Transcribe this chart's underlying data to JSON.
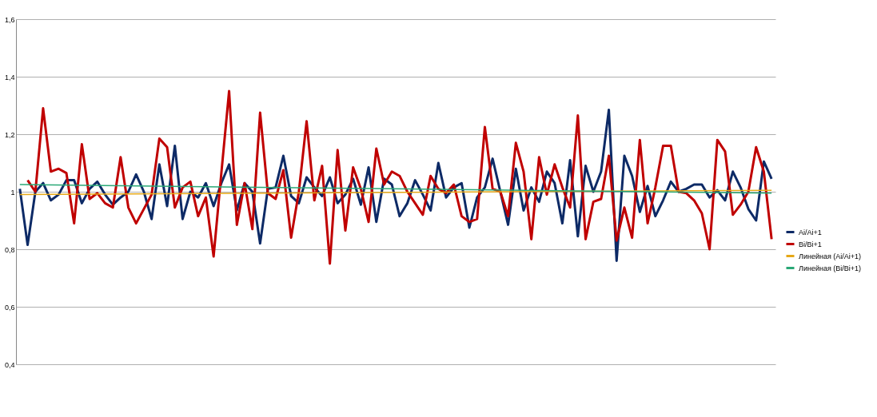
{
  "chart_data": {
    "type": "line",
    "categories": [
      null,
      null,
      null,
      null,
      null,
      null,
      null,
      null,
      null,
      null,
      null,
      null,
      null,
      null,
      null,
      null,
      null,
      null,
      null,
      null,
      null,
      null,
      null,
      null,
      null,
      null,
      null,
      null,
      null,
      null,
      null,
      null,
      null,
      null,
      null,
      null,
      null,
      null,
      null,
      null,
      null,
      null,
      null,
      null,
      null,
      null,
      null,
      null,
      null,
      null,
      null,
      null,
      null,
      null,
      null,
      null,
      null,
      null,
      null,
      null,
      null,
      null,
      null,
      null,
      null,
      null,
      null,
      null,
      null,
      null,
      null,
      null,
      null,
      null,
      null,
      null,
      null,
      null,
      null,
      null,
      null,
      null,
      null,
      null,
      null,
      null,
      null,
      null,
      null,
      null,
      null,
      null,
      null,
      null,
      null,
      null,
      null,
      null
    ],
    "series": [
      {
        "name": "Ai/Ai+1",
        "color": "#0d2a66",
        "values": [
          1.01,
          0.815,
          1.0,
          1.03,
          0.97,
          0.99,
          1.04,
          1.04,
          0.96,
          1.01,
          1.035,
          0.99,
          0.955,
          0.98,
          1.0,
          1.06,
          1.0,
          0.905,
          1.095,
          0.95,
          1.16,
          0.905,
          1.0,
          0.98,
          1.03,
          0.95,
          1.03,
          1.095,
          0.935,
          1.03,
          1.0,
          0.82,
          1.01,
          1.015,
          1.125,
          0.985,
          0.96,
          1.05,
          1.015,
          0.985,
          1.05,
          0.96,
          0.99,
          1.045,
          0.955,
          1.085,
          0.895,
          1.045,
          1.025,
          0.915,
          0.96,
          1.04,
          0.99,
          0.935,
          1.1,
          0.98,
          1.015,
          1.03,
          0.875,
          0.98,
          1.015,
          1.115,
          1.0,
          0.885,
          1.08,
          0.935,
          1.015,
          0.965,
          1.07,
          1.03,
          0.89,
          1.11,
          0.845,
          1.09,
          1.0,
          1.07,
          1.285,
          0.76,
          1.125,
          1.055,
          0.93,
          1.02,
          0.915,
          0.97,
          1.035,
          1.0,
          1.01,
          1.025,
          1.025,
          0.98,
          1.005,
          0.97,
          1.07,
          1.015,
          0.94,
          0.9,
          1.105,
          1.045
        ]
      },
      {
        "name": "Bi/Bi+1",
        "color": "#c00000",
        "values": [
          null,
          1.04,
          1.0,
          1.29,
          1.07,
          1.08,
          1.065,
          0.89,
          1.165,
          0.975,
          0.995,
          0.96,
          0.945,
          1.12,
          0.945,
          0.89,
          0.94,
          0.99,
          1.185,
          1.155,
          0.945,
          1.015,
          1.035,
          0.915,
          0.98,
          0.775,
          1.065,
          1.35,
          0.885,
          1.03,
          0.87,
          1.275,
          0.995,
          0.975,
          1.075,
          0.84,
          1.0,
          1.245,
          0.97,
          1.09,
          0.75,
          1.145,
          0.865,
          1.085,
          1.01,
          0.895,
          1.15,
          1.025,
          1.07,
          1.055,
          1.0,
          0.96,
          0.92,
          1.055,
          1.01,
          0.995,
          1.025,
          0.915,
          0.895,
          0.905,
          1.225,
          1.01,
          1.0,
          0.915,
          1.17,
          1.07,
          0.835,
          1.12,
          0.99,
          1.095,
          1.015,
          0.945,
          1.265,
          0.835,
          0.965,
          0.975,
          1.125,
          0.83,
          0.945,
          0.84,
          1.18,
          0.89,
          1.015,
          1.16,
          1.16,
          1.0,
          0.995,
          0.97,
          0.925,
          0.8,
          1.18,
          1.14,
          0.92,
          0.955,
          1.0,
          1.155,
          1.07,
          0.835
        ]
      },
      {
        "name": "Линейная (Ai/Ai+1)",
        "color": "#e6a817",
        "values": [
          0.99,
          null,
          null,
          null,
          null,
          null,
          null,
          null,
          null,
          null,
          null,
          null,
          null,
          null,
          null,
          null,
          null,
          null,
          null,
          null,
          null,
          null,
          null,
          null,
          null,
          null,
          null,
          null,
          null,
          null,
          null,
          null,
          null,
          null,
          null,
          null,
          null,
          null,
          null,
          null,
          null,
          null,
          null,
          null,
          null,
          null,
          null,
          null,
          null,
          null,
          null,
          null,
          null,
          null,
          null,
          null,
          null,
          null,
          null,
          null,
          null,
          null,
          null,
          null,
          null,
          null,
          null,
          null,
          null,
          null,
          null,
          null,
          null,
          null,
          null,
          null,
          null,
          null,
          null,
          null,
          null,
          null,
          null,
          null,
          null,
          null,
          null,
          null,
          null,
          null,
          null,
          null,
          null,
          null,
          null,
          null,
          null,
          1.005
        ]
      },
      {
        "name": "Линейная (Bi/Bi+1)",
        "color": "#2aa876",
        "values": [
          1.025,
          null,
          null,
          null,
          null,
          null,
          null,
          null,
          null,
          null,
          null,
          null,
          null,
          null,
          null,
          null,
          null,
          null,
          null,
          null,
          null,
          null,
          null,
          null,
          null,
          null,
          null,
          null,
          null,
          null,
          null,
          null,
          null,
          null,
          null,
          null,
          null,
          null,
          null,
          null,
          null,
          null,
          null,
          null,
          null,
          null,
          null,
          null,
          null,
          null,
          null,
          null,
          null,
          null,
          null,
          null,
          null,
          null,
          null,
          null,
          null,
          null,
          null,
          null,
          null,
          null,
          null,
          null,
          null,
          null,
          null,
          null,
          null,
          null,
          null,
          null,
          null,
          null,
          null,
          null,
          null,
          null,
          null,
          null,
          null,
          null,
          null,
          null,
          null,
          null,
          null,
          null,
          null,
          null,
          null,
          null,
          null,
          0.995
        ]
      }
    ],
    "ylim": [
      0.4,
      1.6
    ],
    "yticks": [
      {
        "value": 0.4,
        "label": "0,4"
      },
      {
        "value": 0.6,
        "label": "0,6"
      },
      {
        "value": 0.8,
        "label": "0,8"
      },
      1,
      {
        "value": 1.2,
        "label": "1,2"
      },
      {
        "value": 1.4,
        "label": "1,4"
      },
      {
        "value": 1.6,
        "label": "1,6"
      }
    ],
    "tick_labels": "y",
    "grid": "y",
    "legend": "right",
    "marker": "none",
    "line_style": "solid"
  }
}
